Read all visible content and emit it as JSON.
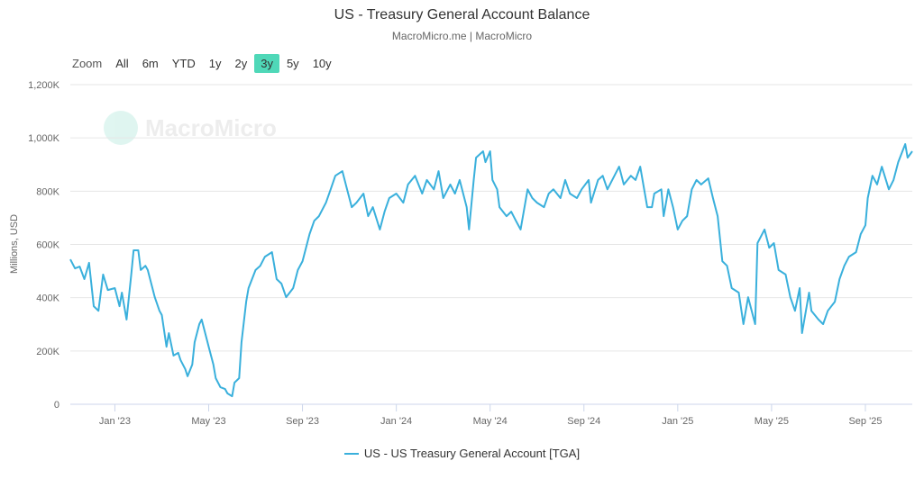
{
  "header": {
    "title": "US - Treasury General Account Balance",
    "subtitle": "MacroMicro.me | MacroMicro"
  },
  "zoom": {
    "label": "Zoom",
    "options": [
      "All",
      "6m",
      "YTD",
      "1y",
      "2y",
      "3y",
      "5y",
      "10y"
    ],
    "active": "3y"
  },
  "watermark": "MacroMicro",
  "colors": {
    "line": "#3ab0dc",
    "active": "#4fd8b8",
    "grid": "#e6e6e6"
  },
  "chart_data": {
    "type": "line",
    "title": "US - Treasury General Account Balance",
    "xlabel": "",
    "ylabel": "Millions, USD",
    "x_unit": "months since Jan 2023",
    "xlim": [
      -1.9,
      34.0
    ],
    "ylim": [
      0,
      1200000
    ],
    "yticks": [
      0,
      200000,
      400000,
      600000,
      800000,
      1000000,
      1200000
    ],
    "ytick_labels": [
      "0",
      "200K",
      "400K",
      "600K",
      "800K",
      "1,000K",
      "1,200K"
    ],
    "xticks": [
      0,
      4,
      8,
      12,
      16,
      20,
      24,
      28,
      32
    ],
    "xtick_labels": [
      "Jan '23",
      "May '23",
      "Sep '23",
      "Jan '24",
      "May '24",
      "Sep '24",
      "Jan '25",
      "May '25",
      "Sep '25"
    ],
    "grid": true,
    "legend_position": "bottom",
    "series": [
      {
        "name": "US - US Treasury General Account [TGA]",
        "x": [
          -1.9,
          -1.7,
          -1.5,
          -1.3,
          -1.1,
          -0.9,
          -0.7,
          -0.5,
          -0.3,
          0,
          0.2,
          0.3,
          0.5,
          0.7,
          0.8,
          1.0,
          1.1,
          1.3,
          1.4,
          1.6,
          1.7,
          1.9,
          2.0,
          2.2,
          2.3,
          2.5,
          2.7,
          2.8,
          3.0,
          3.1,
          3.3,
          3.4,
          3.6,
          3.7,
          3.9,
          4.0,
          4.2,
          4.3,
          4.5,
          4.7,
          4.8,
          5.0,
          5.1,
          5.3,
          5.4,
          5.6,
          5.7,
          6.0,
          6.2,
          6.4,
          6.7,
          6.9,
          7.1,
          7.3,
          7.6,
          7.8,
          8.0,
          8.3,
          8.5,
          8.7,
          9.0,
          9.2,
          9.4,
          9.7,
          9.9,
          10.1,
          10.3,
          10.6,
          10.8,
          11.0,
          11.3,
          11.5,
          11.7,
          12.0,
          12.3,
          12.5,
          12.8,
          13.1,
          13.3,
          13.6,
          13.8,
          14.0,
          14.3,
          14.5,
          14.7,
          15.0,
          15.1,
          15.3,
          15.4,
          15.7,
          15.8,
          16.0,
          16.1,
          16.3,
          16.4,
          16.7,
          16.9,
          17.1,
          17.3,
          17.6,
          17.8,
          18.0,
          18.3,
          18.5,
          18.7,
          19.0,
          19.2,
          19.4,
          19.7,
          19.9,
          20.2,
          20.3,
          20.6,
          20.8,
          21.0,
          21.3,
          21.5,
          21.7,
          22.0,
          22.2,
          22.4,
          22.7,
          22.9,
          23.0,
          23.3,
          23.4,
          23.6,
          23.8,
          24.0,
          24.2,
          24.4,
          24.6,
          24.8,
          25.0,
          25.3,
          25.5,
          25.7,
          25.9,
          26.1,
          26.3,
          26.6,
          26.8,
          27.0,
          27.3,
          27.4,
          27.7,
          27.9,
          28.1,
          28.3,
          28.6,
          28.8,
          29.0,
          29.2,
          29.3,
          29.6,
          29.7,
          30.0,
          30.2,
          30.4,
          30.7,
          30.9,
          31.1,
          31.3,
          31.6,
          31.8,
          32.0,
          32.1,
          32.3,
          32.5,
          32.7,
          33.0,
          33.2,
          33.4,
          33.7,
          33.8,
          34.0
        ],
        "y": [
          544000,
          510000,
          517000,
          470000,
          531000,
          368000,
          351000,
          487000,
          429000,
          436000,
          368000,
          419000,
          318000,
          487000,
          578000,
          578000,
          504000,
          520000,
          504000,
          436000,
          402000,
          351000,
          335000,
          216000,
          267000,
          183000,
          193000,
          166000,
          132000,
          105000,
          149000,
          233000,
          301000,
          318000,
          250000,
          216000,
          149000,
          98000,
          64000,
          57000,
          41000,
          30000,
          81000,
          98000,
          233000,
          385000,
          436000,
          504000,
          520000,
          554000,
          571000,
          470000,
          453000,
          402000,
          436000,
          504000,
          537000,
          639000,
          689000,
          706000,
          757000,
          807000,
          858000,
          875000,
          807000,
          740000,
          757000,
          791000,
          706000,
          740000,
          656000,
          723000,
          774000,
          791000,
          757000,
          825000,
          858000,
          791000,
          842000,
          807000,
          875000,
          774000,
          825000,
          791000,
          842000,
          740000,
          656000,
          842000,
          926000,
          950000,
          909000,
          950000,
          842000,
          807000,
          740000,
          706000,
          723000,
          689000,
          656000,
          807000,
          774000,
          757000,
          740000,
          791000,
          807000,
          774000,
          842000,
          791000,
          774000,
          807000,
          842000,
          757000,
          842000,
          858000,
          807000,
          858000,
          892000,
          825000,
          858000,
          842000,
          892000,
          740000,
          740000,
          791000,
          807000,
          706000,
          807000,
          740000,
          656000,
          689000,
          706000,
          807000,
          842000,
          825000,
          848000,
          774000,
          706000,
          537000,
          520000,
          436000,
          419000,
          301000,
          402000,
          301000,
          605000,
          656000,
          588000,
          605000,
          504000,
          487000,
          402000,
          351000,
          436000,
          267000,
          419000,
          351000,
          318000,
          301000,
          351000,
          385000,
          470000,
          520000,
          554000,
          571000,
          639000,
          672000,
          774000,
          858000,
          825000,
          892000,
          807000,
          842000,
          909000,
          977000,
          926000,
          950000
        ]
      }
    ]
  }
}
